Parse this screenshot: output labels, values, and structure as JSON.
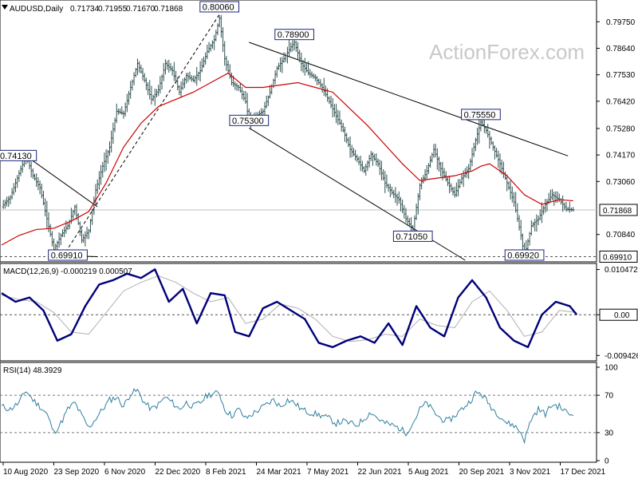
{
  "chart_data": [
    {
      "type": "line",
      "panel": "price",
      "title": "AUDUSD,Daily",
      "ohlc": [
        "0.71734",
        "0.71955",
        "0.71670",
        "0.71868"
      ],
      "watermark": "ActionForex.com",
      "ylim": [
        0.6976,
        0.8006
      ],
      "x_range": [
        0,
        340
      ],
      "yticks": [
        {
          "label": "0.79750",
          "value": 0.7975
        },
        {
          "label": "0.78640",
          "value": 0.7864
        },
        {
          "label": "0.77530",
          "value": 0.7753
        },
        {
          "label": "0.76420",
          "value": 0.7642
        },
        {
          "label": "0.75280",
          "value": 0.7528
        },
        {
          "label": "0.74170",
          "value": 0.7417
        },
        {
          "label": "0.73060",
          "value": 0.7306
        },
        {
          "label": "0.70840",
          "value": 0.7084
        }
      ],
      "current_price": {
        "label": "0.71868",
        "value": 0.71868
      },
      "support_level": {
        "label": "0.69910",
        "value": 0.6991
      },
      "annotations": [
        {
          "label": "0.74130",
          "x": 14,
          "y": 0.7413
        },
        {
          "label": "0.69910",
          "x": 38,
          "y": 0.6991
        },
        {
          "label": "0.80060",
          "x": 125,
          "y": 0.8006
        },
        {
          "label": "0.75300",
          "x": 142,
          "y": 0.753
        },
        {
          "label": "0.78900",
          "x": 168,
          "y": 0.789
        },
        {
          "label": "0.71050",
          "x": 236,
          "y": 0.7105
        },
        {
          "label": "0.75550",
          "x": 275,
          "y": 0.7555
        },
        {
          "label": "0.69920",
          "x": 300,
          "y": 0.6992
        }
      ],
      "trendlines": [
        {
          "x1": 14,
          "y1": 0.7413,
          "x2": 55,
          "y2": 0.72
        },
        {
          "x1": 30,
          "y1": 0.6996,
          "x2": 55,
          "y2": 0.6991
        },
        {
          "x1": 35,
          "y1": 0.6991,
          "x2": 125,
          "y2": 0.8006
        },
        {
          "x1": 142,
          "y1": 0.7889,
          "x2": 325,
          "y2": 0.7413
        },
        {
          "x1": 142,
          "y1": 0.753,
          "x2": 266,
          "y2": 0.6976
        }
      ],
      "series": [
        {
          "role": "close",
          "color": "#2f4f4f",
          "x": [
            0,
            5,
            10,
            14,
            18,
            22,
            26,
            30,
            34,
            38,
            42,
            46,
            50,
            54,
            58,
            62,
            66,
            70,
            74,
            78,
            82,
            86,
            90,
            94,
            98,
            102,
            106,
            110,
            114,
            118,
            122,
            125,
            128,
            132,
            136,
            140,
            142,
            146,
            150,
            154,
            158,
            162,
            166,
            168,
            172,
            176,
            180,
            184,
            188,
            192,
            196,
            200,
            204,
            208,
            212,
            216,
            220,
            224,
            228,
            232,
            236,
            240,
            244,
            248,
            252,
            256,
            260,
            264,
            268,
            272,
            275,
            278,
            282,
            286,
            290,
            294,
            298,
            300,
            304,
            308,
            312,
            316,
            320,
            324,
            328
          ],
          "y": [
            0.72,
            0.724,
            0.734,
            0.7413,
            0.733,
            0.728,
            0.715,
            0.702,
            0.708,
            0.712,
            0.72,
            0.706,
            0.71,
            0.727,
            0.737,
            0.745,
            0.76,
            0.759,
            0.77,
            0.78,
            0.773,
            0.765,
            0.769,
            0.78,
            0.777,
            0.768,
            0.775,
            0.773,
            0.777,
            0.785,
            0.79,
            0.799,
            0.782,
            0.772,
            0.77,
            0.764,
            0.756,
            0.758,
            0.76,
            0.768,
            0.778,
            0.782,
            0.787,
            0.7889,
            0.78,
            0.776,
            0.774,
            0.77,
            0.764,
            0.758,
            0.752,
            0.744,
            0.74,
            0.735,
            0.742,
            0.738,
            0.73,
            0.726,
            0.723,
            0.715,
            0.7105,
            0.729,
            0.735,
            0.744,
            0.736,
            0.73,
            0.725,
            0.732,
            0.736,
            0.748,
            0.7555,
            0.752,
            0.745,
            0.738,
            0.73,
            0.722,
            0.708,
            0.6992,
            0.712,
            0.715,
            0.721,
            0.725,
            0.723,
            0.719,
            0.7187
          ]
        },
        {
          "role": "moving average",
          "color": "#cc0000",
          "x": [
            0,
            10,
            20,
            30,
            40,
            50,
            60,
            70,
            80,
            90,
            100,
            110,
            120,
            130,
            140,
            150,
            160,
            170,
            180,
            190,
            200,
            210,
            220,
            230,
            240,
            250,
            260,
            270,
            275,
            280,
            290,
            300,
            310,
            320,
            328
          ],
          "y": [
            0.704,
            0.708,
            0.7105,
            0.711,
            0.714,
            0.718,
            0.73,
            0.745,
            0.755,
            0.762,
            0.765,
            0.768,
            0.772,
            0.776,
            0.77,
            0.77,
            0.771,
            0.772,
            0.77,
            0.768,
            0.761,
            0.754,
            0.746,
            0.738,
            0.731,
            0.732,
            0.733,
            0.735,
            0.737,
            0.738,
            0.733,
            0.725,
            0.721,
            0.723,
            0.7225
          ]
        }
      ]
    },
    {
      "type": "line",
      "panel": "macd",
      "title": "MACD(12,26,9) -0.000219 0.000507",
      "ylim": [
        -0.0103,
        0.0115
      ],
      "yticks": [
        {
          "label": "0.010472",
          "value": 0.010472
        },
        {
          "label": "0.00",
          "value": 0.0
        },
        {
          "label": "-0.009426",
          "value": -0.009426
        }
      ],
      "current_value": {
        "label": "0.00",
        "value": 0.0
      },
      "series": [
        {
          "role": "macd",
          "color": "#00007a",
          "x": [
            0,
            8,
            16,
            24,
            32,
            40,
            48,
            56,
            64,
            72,
            80,
            88,
            96,
            104,
            112,
            120,
            128,
            134,
            142,
            150,
            158,
            166,
            174,
            182,
            190,
            198,
            206,
            214,
            222,
            230,
            238,
            246,
            254,
            262,
            270,
            278,
            286,
            294,
            302,
            310,
            318,
            326,
            330
          ],
          "y": [
            0.005,
            0.003,
            0.004,
            0.001,
            -0.006,
            -0.0045,
            0.002,
            0.007,
            0.008,
            0.0095,
            0.0085,
            0.0105,
            0.003,
            0.006,
            -0.002,
            0.005,
            0.0045,
            -0.004,
            -0.005,
            0.0015,
            0.003,
            0.001,
            -0.001,
            -0.0065,
            -0.0075,
            -0.006,
            -0.005,
            -0.0065,
            -0.002,
            -0.007,
            0.002,
            -0.003,
            -0.005,
            0.004,
            0.008,
            0.004,
            -0.003,
            -0.006,
            -0.0075,
            0.0,
            0.003,
            0.002,
            0.0
          ]
        },
        {
          "role": "signal",
          "color": "#b0b0b0",
          "x": [
            0,
            10,
            20,
            30,
            40,
            50,
            60,
            70,
            80,
            90,
            100,
            110,
            120,
            130,
            140,
            150,
            160,
            170,
            180,
            190,
            200,
            210,
            220,
            230,
            240,
            250,
            260,
            270,
            280,
            290,
            300,
            310,
            320,
            330
          ],
          "y": [
            0.0045,
            0.0035,
            0.003,
            0.0005,
            -0.004,
            -0.0045,
            0.0005,
            0.0055,
            0.0075,
            0.009,
            0.0075,
            0.005,
            0.003,
            0.004,
            -0.002,
            -0.001,
            0.0025,
            0.0015,
            -0.001,
            -0.005,
            -0.0062,
            -0.0058,
            -0.0045,
            -0.005,
            -0.001,
            -0.0025,
            -0.003,
            0.003,
            0.0055,
            0.001,
            -0.005,
            -0.004,
            0.001,
            0.0005
          ]
        }
      ]
    },
    {
      "type": "line",
      "panel": "rsi",
      "title": "RSI(14) 48.3929",
      "ylim": [
        0,
        100
      ],
      "yticks": [
        {
          "label": "100",
          "value": 100
        },
        {
          "label": "70",
          "value": 70
        },
        {
          "label": "30",
          "value": 30
        },
        {
          "label": "0",
          "value": 0
        }
      ],
      "levels": [
        70,
        30
      ],
      "xticks": [
        "10 Aug 2020",
        "23 Sep 2020",
        "6 Nov 2020",
        "22 Dec 2020",
        "8 Feb 2021",
        "24 Mar 2021",
        "7 May 2021",
        "22 Jun 2021",
        "5 Aug 2021",
        "20 Sep 2021",
        "3 Nov 2021",
        "17 Dec 2021"
      ],
      "series": [
        {
          "role": "rsi",
          "color": "#2f7fa0",
          "x": [
            0,
            5,
            10,
            14,
            18,
            22,
            26,
            30,
            34,
            38,
            42,
            46,
            50,
            54,
            58,
            62,
            66,
            70,
            74,
            78,
            82,
            86,
            90,
            94,
            98,
            102,
            106,
            110,
            114,
            118,
            122,
            125,
            128,
            132,
            136,
            140,
            144,
            148,
            152,
            156,
            160,
            164,
            168,
            172,
            176,
            180,
            184,
            188,
            192,
            196,
            200,
            204,
            208,
            212,
            216,
            220,
            224,
            228,
            232,
            236,
            240,
            244,
            248,
            252,
            256,
            260,
            264,
            268,
            272,
            275,
            278,
            282,
            286,
            290,
            294,
            298,
            300,
            304,
            308,
            312,
            316,
            320,
            324,
            328
          ],
          "y": [
            58,
            55,
            62,
            75,
            65,
            58,
            50,
            30,
            40,
            55,
            62,
            48,
            35,
            45,
            55,
            65,
            68,
            58,
            72,
            75,
            62,
            55,
            60,
            68,
            62,
            55,
            62,
            58,
            62,
            70,
            72,
            72,
            55,
            48,
            55,
            45,
            50,
            55,
            60,
            65,
            58,
            65,
            62,
            55,
            52,
            50,
            48,
            45,
            40,
            42,
            40,
            38,
            45,
            52,
            45,
            40,
            38,
            35,
            30,
            40,
            55,
            62,
            52,
            45,
            42,
            48,
            55,
            62,
            72,
            72,
            65,
            55,
            48,
            40,
            38,
            30,
            22,
            45,
            55,
            50,
            60,
            58,
            52,
            48
          ]
        }
      ]
    }
  ]
}
